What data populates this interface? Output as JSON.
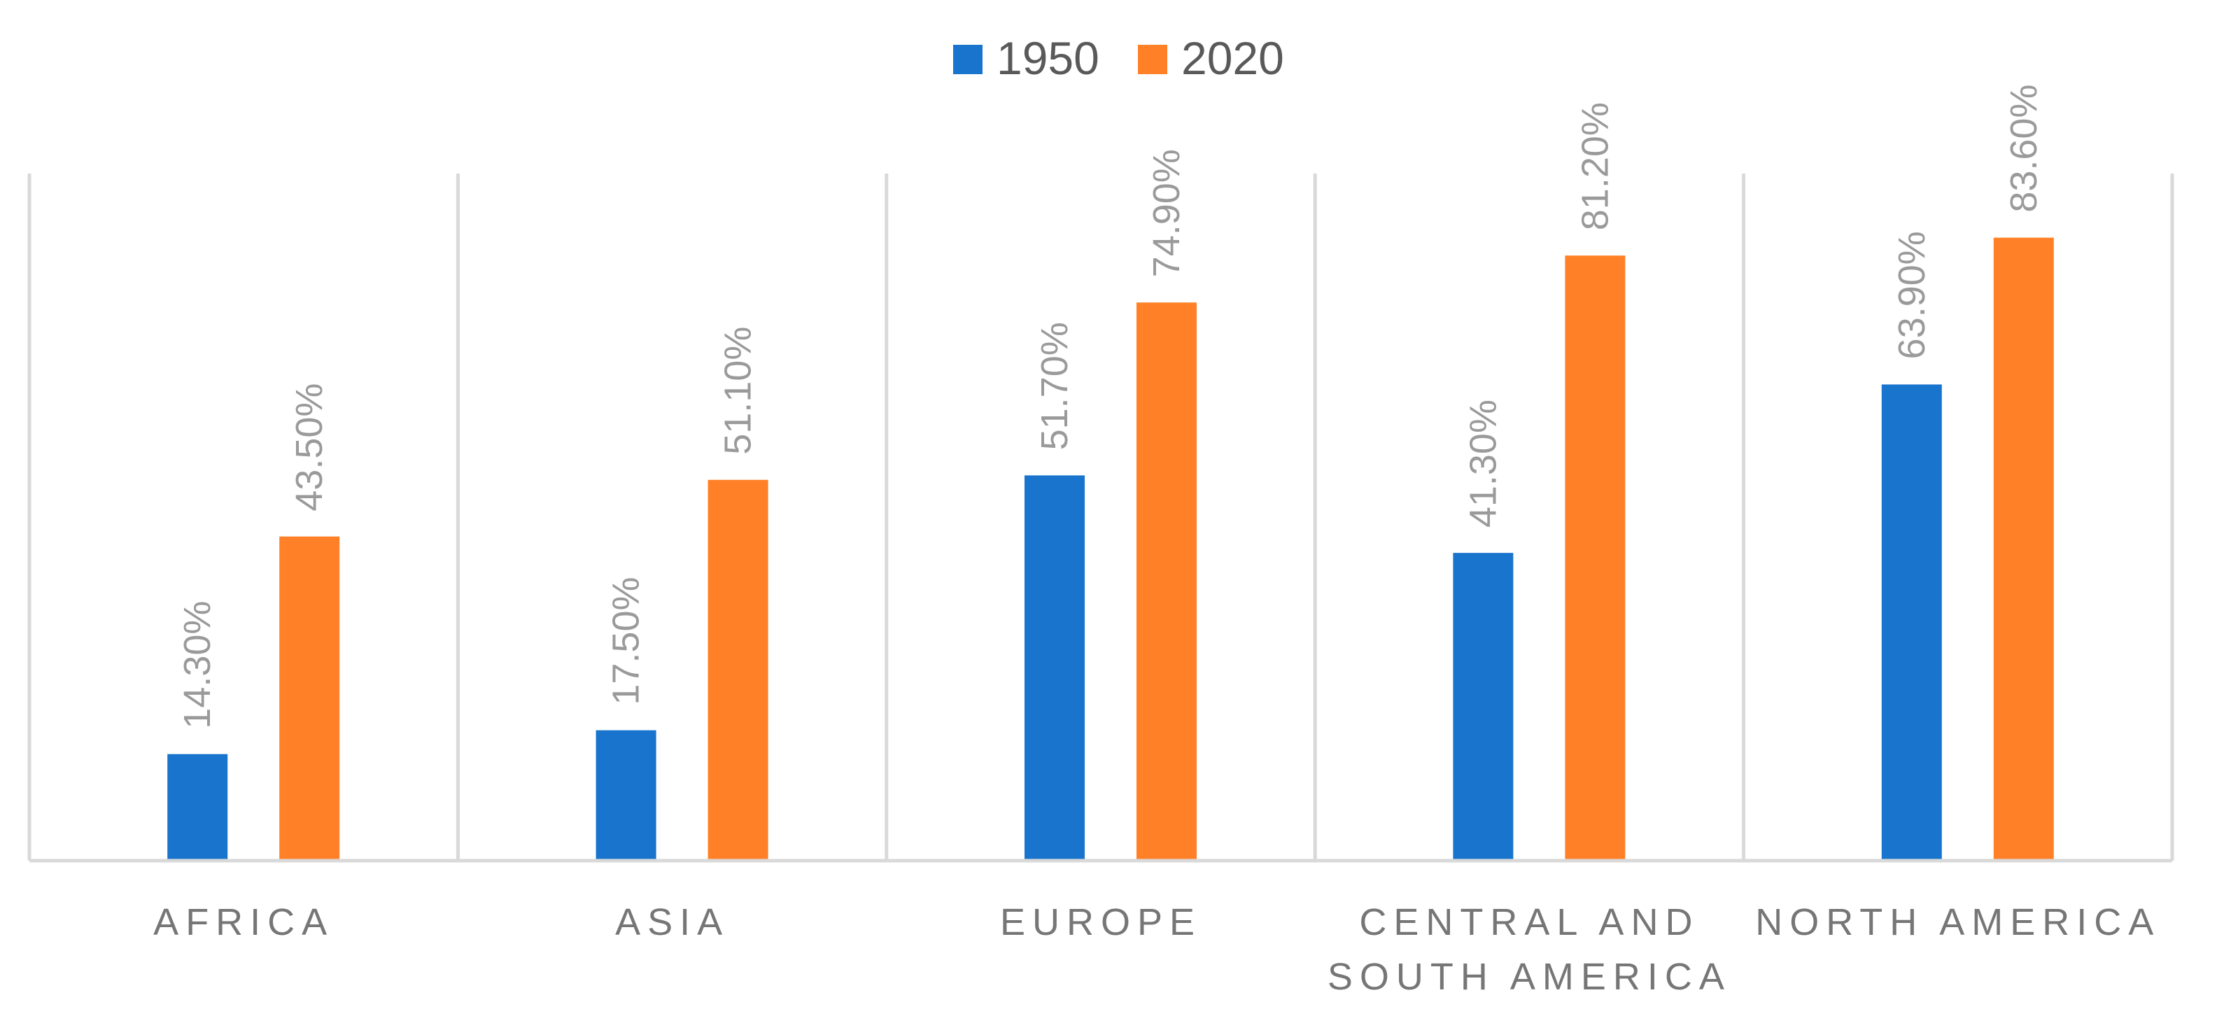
{
  "chart_data": {
    "type": "bar",
    "title": "",
    "xlabel": "",
    "ylabel": "",
    "ylim": [
      0,
      90
    ],
    "grid": false,
    "legend_position": "top-center",
    "categories": [
      "AFRICA",
      "ASIA",
      "EUROPE",
      "CENTRAL AND SOUTH AMERICA",
      "NORTH AMERICA"
    ],
    "category_lines": [
      [
        "AFRICA"
      ],
      [
        "ASIA"
      ],
      [
        "EUROPE"
      ],
      [
        "CENTRAL AND",
        "SOUTH AMERICA"
      ],
      [
        "NORTH AMERICA"
      ]
    ],
    "series": [
      {
        "name": "1950",
        "color": "#1874CD",
        "values": [
          14.3,
          17.5,
          51.7,
          41.3,
          63.9
        ],
        "labels": [
          "14.30%",
          "17.50%",
          "51.70%",
          "41.30%",
          "63.90%"
        ]
      },
      {
        "name": "2020",
        "color": "#FF8026",
        "values": [
          43.5,
          51.1,
          74.9,
          81.2,
          83.6
        ],
        "labels": [
          "43.50%",
          "51.10%",
          "74.90%",
          "81.20%",
          "83.60%"
        ]
      }
    ]
  }
}
